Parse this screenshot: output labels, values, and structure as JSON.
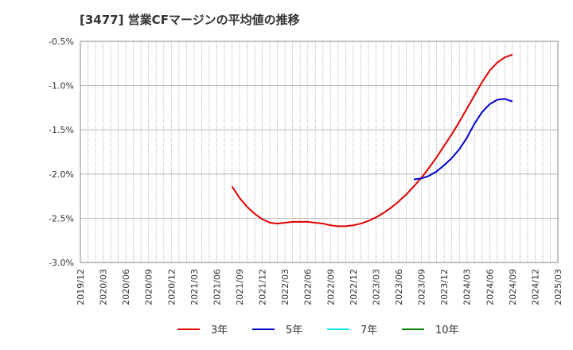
{
  "chart_data": {
    "type": "line",
    "title": "[3477]  営業CFマージンの平均値の推移",
    "xlabel": "",
    "ylabel": "",
    "ylim": [
      -3.0,
      -0.5
    ],
    "y_ticks": [
      "-0.5%",
      "-1.0%",
      "-1.5%",
      "-2.0%",
      "-2.5%",
      "-3.0%"
    ],
    "y_tick_values": [
      -0.5,
      -1.0,
      -1.5,
      -2.0,
      -2.5,
      -3.0
    ],
    "x_ticks": [
      "2019/12",
      "2020/03",
      "2020/06",
      "2020/09",
      "2020/12",
      "2021/03",
      "2021/06",
      "2021/09",
      "2021/12",
      "2022/03",
      "2022/06",
      "2022/09",
      "2022/12",
      "2023/03",
      "2023/06",
      "2023/09",
      "2023/12",
      "2024/03",
      "2024/06",
      "2024/09",
      "2024/12",
      "2025/03"
    ],
    "grid": true,
    "legend_position": "bottom",
    "series": [
      {
        "name": "3年",
        "color": "#e00000",
        "x": [
          "2021/08",
          "2021/09",
          "2021/10",
          "2021/11",
          "2021/12",
          "2022/01",
          "2022/02",
          "2022/03",
          "2022/04",
          "2022/05",
          "2022/06",
          "2022/07",
          "2022/08",
          "2022/09",
          "2022/10",
          "2022/11",
          "2022/12",
          "2023/01",
          "2023/02",
          "2023/03",
          "2023/04",
          "2023/05",
          "2023/06",
          "2023/07",
          "2023/08",
          "2023/09",
          "2023/10",
          "2023/11",
          "2023/12",
          "2024/01",
          "2024/02",
          "2024/03",
          "2024/04",
          "2024/05",
          "2024/06",
          "2024/07",
          "2024/08",
          "2024/09"
        ],
        "values": [
          -2.14,
          -2.27,
          -2.37,
          -2.45,
          -2.51,
          -2.55,
          -2.56,
          -2.55,
          -2.54,
          -2.54,
          -2.54,
          -2.55,
          -2.56,
          -2.58,
          -2.59,
          -2.59,
          -2.58,
          -2.56,
          -2.53,
          -2.49,
          -2.44,
          -2.38,
          -2.31,
          -2.23,
          -2.14,
          -2.04,
          -1.93,
          -1.81,
          -1.68,
          -1.55,
          -1.41,
          -1.26,
          -1.11,
          -0.96,
          -0.83,
          -0.74,
          -0.68,
          -0.65
        ]
      },
      {
        "name": "5年",
        "color": "#0000cc",
        "x": [
          "2023/08",
          "2023/09",
          "2023/10",
          "2023/11",
          "2023/12",
          "2024/01",
          "2024/02",
          "2024/03",
          "2024/04",
          "2024/05",
          "2024/06",
          "2024/07",
          "2024/08",
          "2024/09"
        ],
        "values": [
          -2.06,
          -2.05,
          -2.02,
          -1.97,
          -1.9,
          -1.82,
          -1.72,
          -1.59,
          -1.43,
          -1.3,
          -1.21,
          -1.16,
          -1.15,
          -1.18
        ]
      },
      {
        "name": "7年",
        "color": "#00e5ee",
        "x": [],
        "values": []
      },
      {
        "name": "10年",
        "color": "#008000",
        "x": [],
        "values": []
      }
    ]
  }
}
